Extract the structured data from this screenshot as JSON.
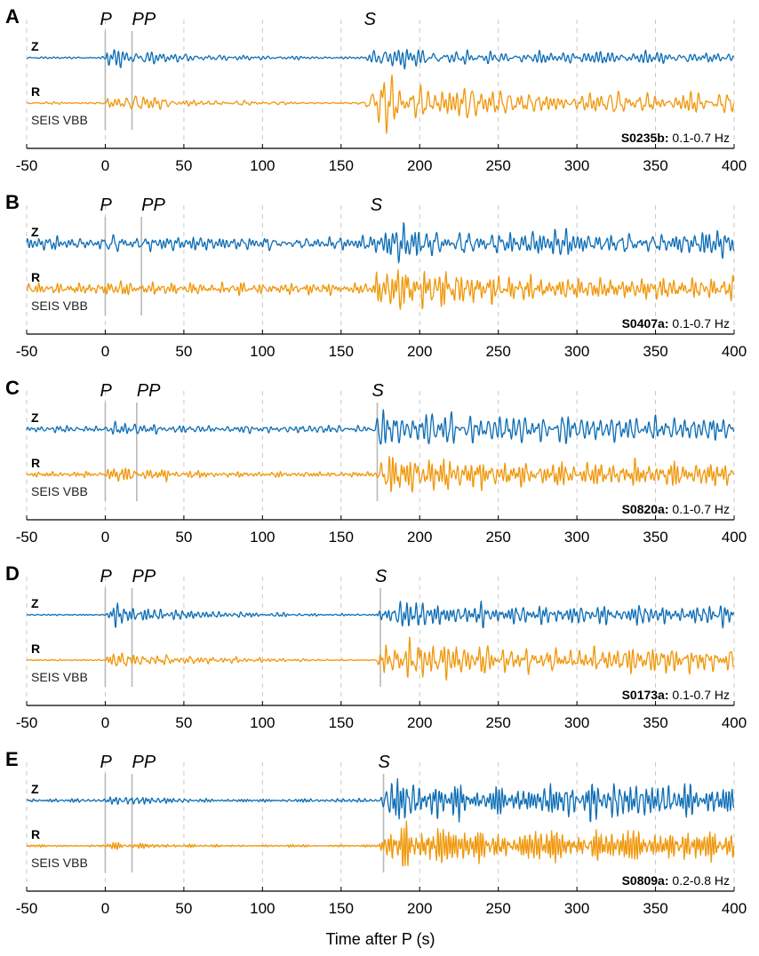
{
  "chart_data": {
    "type": "line",
    "xlabel": "Time after P (s)",
    "xlim": [
      -50,
      400
    ],
    "xticks": [
      -50,
      0,
      50,
      100,
      150,
      200,
      250,
      300,
      350,
      400
    ],
    "grid": "dashed vertical at ticks",
    "colors": {
      "Z": "#0e6eb5",
      "R": "#f0980c",
      "phase_marker": "#b9b9b9",
      "grid": "#c8c8c8",
      "axis": "#000000"
    },
    "station_label": "SEIS VBB",
    "channels": [
      "Z",
      "R"
    ],
    "panels": [
      {
        "letter": "A",
        "event": "S0235b:",
        "band": "0.1-0.7 Hz",
        "phases": [
          {
            "name": "P",
            "t": 0
          },
          {
            "name": "PP",
            "t": 17
          },
          {
            "name": "S",
            "t": 168
          }
        ],
        "markers": [
          {
            "t": 0
          },
          {
            "t": 17
          }
        ]
      },
      {
        "letter": "B",
        "event": "S0407a:",
        "band": "0.1-0.7 Hz",
        "phases": [
          {
            "name": "P",
            "t": 0
          },
          {
            "name": "PP",
            "t": 23
          },
          {
            "name": "S",
            "t": 172
          }
        ],
        "markers": [
          {
            "t": 0
          },
          {
            "t": 23
          }
        ]
      },
      {
        "letter": "C",
        "event": "S0820a:",
        "band": "0.1-0.7 Hz",
        "phases": [
          {
            "name": "P",
            "t": 0
          },
          {
            "name": "PP",
            "t": 20
          },
          {
            "name": "S",
            "t": 173
          }
        ],
        "markers": [
          {
            "t": 0
          },
          {
            "t": 20
          },
          {
            "t": 173
          }
        ]
      },
      {
        "letter": "D",
        "event": "S0173a:",
        "band": "0.1-0.7 Hz",
        "phases": [
          {
            "name": "P",
            "t": 0
          },
          {
            "name": "PP",
            "t": 17
          },
          {
            "name": "S",
            "t": 175
          }
        ],
        "markers": [
          {
            "t": 0
          },
          {
            "t": 17
          },
          {
            "t": 175
          }
        ]
      },
      {
        "letter": "E",
        "event": "S0809a:",
        "band": "0.2-0.8 Hz",
        "phases": [
          {
            "name": "P",
            "t": 0
          },
          {
            "name": "PP",
            "t": 17
          },
          {
            "name": "S",
            "t": 177
          }
        ],
        "markers": [
          {
            "t": 0
          },
          {
            "t": 17
          },
          {
            "t": 177
          }
        ]
      }
    ]
  }
}
